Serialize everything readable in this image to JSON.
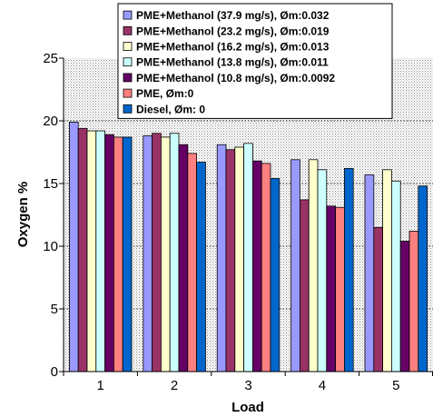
{
  "chart_data": {
    "type": "bar",
    "xlabel": "Load",
    "ylabel": "Oxygen %",
    "categories": [
      "1",
      "2",
      "3",
      "4",
      "5"
    ],
    "yticks": [
      "0",
      "5",
      "10",
      "15",
      "20",
      "25"
    ],
    "ylim": [
      0,
      25
    ],
    "grid": "horizontal dotted gridlines, gray stippled plot background",
    "legend_position": "top-right, inside plot",
    "series": [
      {
        "name": "PME+Methanol (37.9 mg/s), Øm:0.032",
        "color": "#9999FF",
        "values": [
          19.9,
          18.8,
          18.1,
          16.9,
          15.7
        ]
      },
      {
        "name": "PME+Methanol (23.2 mg/s), Øm:0.019",
        "color": "#993366",
        "values": [
          19.4,
          19.0,
          17.7,
          13.7,
          11.5
        ]
      },
      {
        "name": "PME+Methanol (16.2 mg/s), Øm:0.013",
        "color": "#FFFFCC",
        "values": [
          19.2,
          18.7,
          17.9,
          16.9,
          16.1
        ]
      },
      {
        "name": "PME+Methanol (13.8 mg/s), Øm:0.011",
        "color": "#CCFFFF",
        "values": [
          19.2,
          19.0,
          18.2,
          16.1,
          15.2
        ]
      },
      {
        "name": "PME+Methanol (10.8 mg/s), Øm:0.0092",
        "color": "#660066",
        "values": [
          18.9,
          18.1,
          16.8,
          13.2,
          10.4
        ]
      },
      {
        "name": "PME, Øm:0",
        "color": "#FF8080",
        "values": [
          18.7,
          17.4,
          16.6,
          13.1,
          11.2
        ]
      },
      {
        "name": "Diesel, Øm: 0",
        "color": "#0066CC",
        "values": [
          18.7,
          16.7,
          15.4,
          16.2,
          14.8
        ]
      }
    ]
  }
}
